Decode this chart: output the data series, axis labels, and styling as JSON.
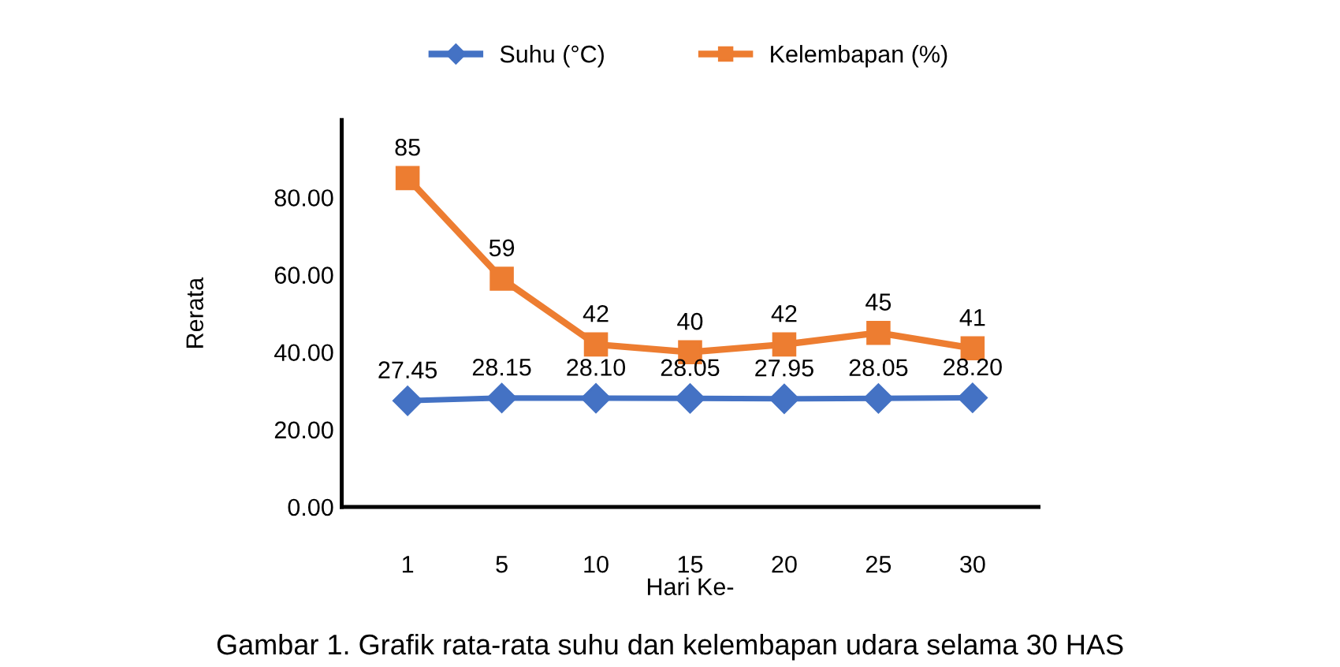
{
  "chart_data": {
    "type": "line",
    "xlabel": "Hari Ke-",
    "ylabel": "Rerata",
    "categories": [
      "1",
      "5",
      "10",
      "15",
      "20",
      "25",
      "30"
    ],
    "series": [
      {
        "name": "Suhu (°C)",
        "color": "#4472c4",
        "marker": "diamond",
        "values": [
          27.45,
          28.15,
          28.1,
          28.05,
          27.95,
          28.05,
          28.2
        ],
        "value_labels": [
          "27.45",
          "28.15",
          "28.10",
          "28.05",
          "27.95",
          "28.05",
          "28.20"
        ]
      },
      {
        "name": "Kelembapan (%)",
        "color": "#ed7d31",
        "marker": "square",
        "values": [
          85,
          59,
          42,
          40,
          42,
          45,
          41
        ],
        "value_labels": [
          "85",
          "59",
          "42",
          "40",
          "42",
          "45",
          "41"
        ]
      }
    ],
    "ylim": [
      0,
      100
    ],
    "yticks": [
      {
        "value": 0,
        "label": "0.00"
      },
      {
        "value": 20,
        "label": "20.00"
      },
      {
        "value": 40,
        "label": "40.00"
      },
      {
        "value": 60,
        "label": "60.00"
      },
      {
        "value": 80,
        "label": "80.00"
      }
    ],
    "grid": false,
    "legend": "top",
    "line_style": "solid",
    "annotations": [
      "Gambar 1. Grafik rata-rata suhu dan kelembapan udara selama 30 HAS"
    ]
  }
}
